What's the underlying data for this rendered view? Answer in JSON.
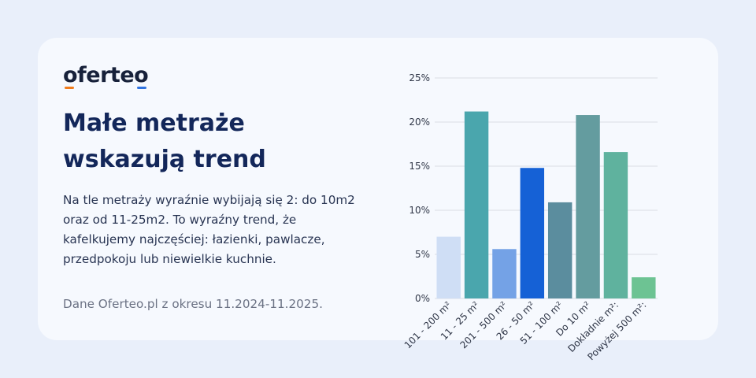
{
  "brand": {
    "logo_text": "oferteo"
  },
  "title_lines": [
    "Małe metraże",
    "wskazują trend"
  ],
  "description_lines": [
    "Na tle metraży wyraźnie wybijają się 2: do 10m2",
    "oraz od 11-25m2. To wyraźny trend, że",
    "kafelkujemy najczęściej: łazienki, pawlacze,",
    "przedpokoju lub niewielkie kuchnie."
  ],
  "source": "Dane Oferteo.pl z okresu 11.2024-11.2025.",
  "colors": {
    "background": "#e9effa",
    "card": "#f6f9fe",
    "title": "#13275a"
  },
  "chart_data": {
    "type": "bar",
    "title": "",
    "xlabel": "",
    "ylabel": "",
    "ylim": [
      0,
      25
    ],
    "yticks": [
      0,
      5,
      10,
      15,
      20,
      25
    ],
    "ytick_labels": [
      "0%",
      "5%",
      "10%",
      "15%",
      "20%",
      "25%"
    ],
    "categories": [
      "101 - 200 m²",
      "11 - 25 m²",
      "201 - 500 m²",
      "26 - 50 m²",
      "51 - 100 m²",
      "Do 10 m²",
      "Dokładnie m²:",
      "Powyżej 500 m²:"
    ],
    "values": [
      7.0,
      21.2,
      5.6,
      14.8,
      10.9,
      20.8,
      16.6,
      2.4
    ],
    "colors": [
      "#cfdef5",
      "#4aa6ad",
      "#74a2e6",
      "#1561d6",
      "#5b8d9e",
      "#649c9f",
      "#5fb29e",
      "#6dc393"
    ],
    "grid": true
  }
}
